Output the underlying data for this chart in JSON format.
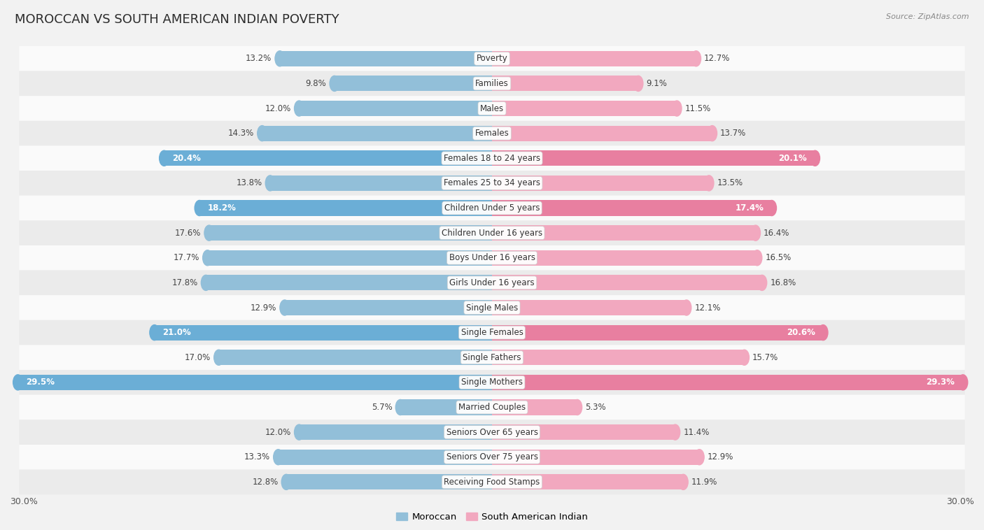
{
  "title": "MOROCCAN VS SOUTH AMERICAN INDIAN POVERTY",
  "source": "Source: ZipAtlas.com",
  "categories": [
    "Poverty",
    "Families",
    "Males",
    "Females",
    "Females 18 to 24 years",
    "Females 25 to 34 years",
    "Children Under 5 years",
    "Children Under 16 years",
    "Boys Under 16 years",
    "Girls Under 16 years",
    "Single Males",
    "Single Females",
    "Single Fathers",
    "Single Mothers",
    "Married Couples",
    "Seniors Over 65 years",
    "Seniors Over 75 years",
    "Receiving Food Stamps"
  ],
  "moroccan": [
    13.2,
    9.8,
    12.0,
    14.3,
    20.4,
    13.8,
    18.2,
    17.6,
    17.7,
    17.8,
    12.9,
    21.0,
    17.0,
    29.5,
    5.7,
    12.0,
    13.3,
    12.8
  ],
  "south_american": [
    12.7,
    9.1,
    11.5,
    13.7,
    20.1,
    13.5,
    17.4,
    16.4,
    16.5,
    16.8,
    12.1,
    20.6,
    15.7,
    29.3,
    5.3,
    11.4,
    12.9,
    11.9
  ],
  "moroccan_color": "#92BFD9",
  "south_american_color": "#F2A8BF",
  "highlight_moroccan": "#6BAED6",
  "highlight_south_american": "#E87FA0",
  "highlight_rows": [
    4,
    6,
    11,
    13
  ],
  "bar_height": 0.62,
  "background_color": "#f2f2f2",
  "row_bg_light": "#fafafa",
  "row_bg_dark": "#ebebeb",
  "xlim": 30.0,
  "title_fontsize": 13,
  "label_fontsize": 9,
  "value_fontsize": 8.5,
  "cat_fontsize": 8.5
}
